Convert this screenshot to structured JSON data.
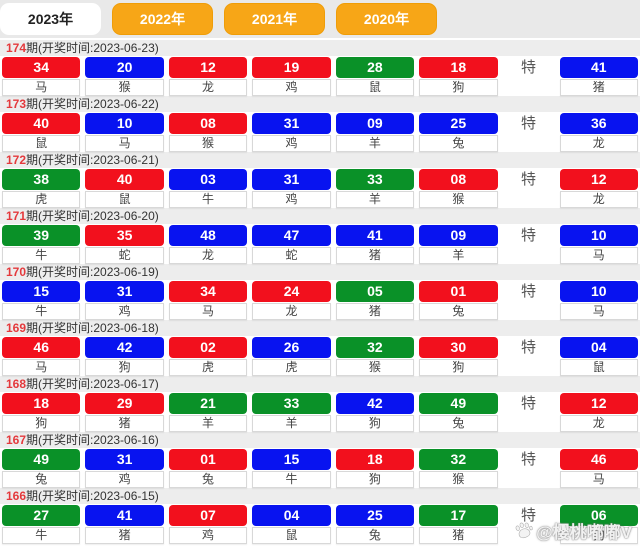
{
  "tabs": [
    {
      "label": "2023年",
      "year": "2023",
      "active": true
    },
    {
      "label": "2022年",
      "year": "2022",
      "active": false
    },
    {
      "label": "2021年",
      "year": "2021",
      "active": false
    },
    {
      "label": "2020年",
      "year": "2020",
      "active": false
    }
  ],
  "special_label": "特",
  "watermark": {
    "icon": "paw-icon",
    "text": "@樱桃嘟嘟V"
  },
  "colors": {
    "red": "#f2101d",
    "blue": "#0813f0",
    "green": "#0a9128",
    "tab_orange": "#f7a617",
    "tab_active_bg": "#ffffff",
    "header_number_red": "#e4393c",
    "special_marker_gray": "#555555"
  },
  "periods": [
    {
      "num": "174",
      "label": "期(开奖时间:2023-06-23)",
      "balls": [
        {
          "n": "34",
          "c": "red",
          "z": "马"
        },
        {
          "n": "20",
          "c": "blue",
          "z": "猴"
        },
        {
          "n": "12",
          "c": "red",
          "z": "龙"
        },
        {
          "n": "19",
          "c": "red",
          "z": "鸡"
        },
        {
          "n": "28",
          "c": "green",
          "z": "鼠"
        },
        {
          "n": "18",
          "c": "red",
          "z": "狗"
        }
      ],
      "special": {
        "n": "41",
        "c": "blue",
        "z": "猪"
      }
    },
    {
      "num": "173",
      "label": "期(开奖时间:2023-06-22)",
      "balls": [
        {
          "n": "40",
          "c": "red",
          "z": "鼠"
        },
        {
          "n": "10",
          "c": "blue",
          "z": "马"
        },
        {
          "n": "08",
          "c": "red",
          "z": "猴"
        },
        {
          "n": "31",
          "c": "blue",
          "z": "鸡"
        },
        {
          "n": "09",
          "c": "blue",
          "z": "羊"
        },
        {
          "n": "25",
          "c": "blue",
          "z": "兔"
        }
      ],
      "special": {
        "n": "36",
        "c": "blue",
        "z": "龙"
      }
    },
    {
      "num": "172",
      "label": "期(开奖时间:2023-06-21)",
      "balls": [
        {
          "n": "38",
          "c": "green",
          "z": "虎"
        },
        {
          "n": "40",
          "c": "red",
          "z": "鼠"
        },
        {
          "n": "03",
          "c": "blue",
          "z": "牛"
        },
        {
          "n": "31",
          "c": "blue",
          "z": "鸡"
        },
        {
          "n": "33",
          "c": "green",
          "z": "羊"
        },
        {
          "n": "08",
          "c": "red",
          "z": "猴"
        }
      ],
      "special": {
        "n": "12",
        "c": "red",
        "z": "龙"
      }
    },
    {
      "num": "171",
      "label": "期(开奖时间:2023-06-20)",
      "balls": [
        {
          "n": "39",
          "c": "green",
          "z": "牛"
        },
        {
          "n": "35",
          "c": "red",
          "z": "蛇"
        },
        {
          "n": "48",
          "c": "blue",
          "z": "龙"
        },
        {
          "n": "47",
          "c": "blue",
          "z": "蛇"
        },
        {
          "n": "41",
          "c": "blue",
          "z": "猪"
        },
        {
          "n": "09",
          "c": "blue",
          "z": "羊"
        }
      ],
      "special": {
        "n": "10",
        "c": "blue",
        "z": "马"
      }
    },
    {
      "num": "170",
      "label": "期(开奖时间:2023-06-19)",
      "balls": [
        {
          "n": "15",
          "c": "blue",
          "z": "牛"
        },
        {
          "n": "31",
          "c": "blue",
          "z": "鸡"
        },
        {
          "n": "34",
          "c": "red",
          "z": "马"
        },
        {
          "n": "24",
          "c": "red",
          "z": "龙"
        },
        {
          "n": "05",
          "c": "green",
          "z": "猪"
        },
        {
          "n": "01",
          "c": "red",
          "z": "兔"
        }
      ],
      "special": {
        "n": "10",
        "c": "blue",
        "z": "马"
      }
    },
    {
      "num": "169",
      "label": "期(开奖时间:2023-06-18)",
      "balls": [
        {
          "n": "46",
          "c": "red",
          "z": "马"
        },
        {
          "n": "42",
          "c": "blue",
          "z": "狗"
        },
        {
          "n": "02",
          "c": "red",
          "z": "虎"
        },
        {
          "n": "26",
          "c": "blue",
          "z": "虎"
        },
        {
          "n": "32",
          "c": "green",
          "z": "猴"
        },
        {
          "n": "30",
          "c": "red",
          "z": "狗"
        }
      ],
      "special": {
        "n": "04",
        "c": "blue",
        "z": "鼠"
      }
    },
    {
      "num": "168",
      "label": "期(开奖时间:2023-06-17)",
      "balls": [
        {
          "n": "18",
          "c": "red",
          "z": "狗"
        },
        {
          "n": "29",
          "c": "red",
          "z": "猪"
        },
        {
          "n": "21",
          "c": "green",
          "z": "羊"
        },
        {
          "n": "33",
          "c": "green",
          "z": "羊"
        },
        {
          "n": "42",
          "c": "blue",
          "z": "狗"
        },
        {
          "n": "49",
          "c": "green",
          "z": "兔"
        }
      ],
      "special": {
        "n": "12",
        "c": "red",
        "z": "龙"
      }
    },
    {
      "num": "167",
      "label": "期(开奖时间:2023-06-16)",
      "balls": [
        {
          "n": "49",
          "c": "green",
          "z": "兔"
        },
        {
          "n": "31",
          "c": "blue",
          "z": "鸡"
        },
        {
          "n": "01",
          "c": "red",
          "z": "兔"
        },
        {
          "n": "15",
          "c": "blue",
          "z": "牛"
        },
        {
          "n": "18",
          "c": "red",
          "z": "狗"
        },
        {
          "n": "32",
          "c": "green",
          "z": "猴"
        }
      ],
      "special": {
        "n": "46",
        "c": "red",
        "z": "马"
      }
    },
    {
      "num": "166",
      "label": "期(开奖时间:2023-06-15)",
      "balls": [
        {
          "n": "27",
          "c": "green",
          "z": "牛"
        },
        {
          "n": "41",
          "c": "blue",
          "z": "猪"
        },
        {
          "n": "07",
          "c": "red",
          "z": "鸡"
        },
        {
          "n": "04",
          "c": "blue",
          "z": "鼠"
        },
        {
          "n": "25",
          "c": "blue",
          "z": "兔"
        },
        {
          "n": "17",
          "c": "green",
          "z": "猪"
        }
      ],
      "special": {
        "n": "06",
        "c": "green",
        "z": "狗"
      }
    }
  ]
}
